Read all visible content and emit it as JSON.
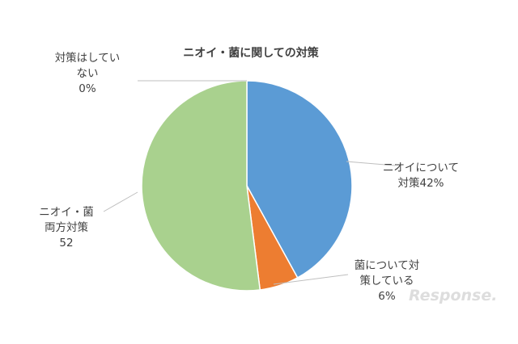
{
  "chart_data": {
    "type": "pie",
    "title": "ニオイ・菌に関しての対策",
    "start_angle_deg": 0,
    "direction": "clockwise",
    "slices": [
      {
        "label_lines": [
          "ニオイについて",
          "対策42%"
        ],
        "value": 42,
        "color": "#5b9bd5"
      },
      {
        "label_lines": [
          "菌について対",
          "策している",
          "6%"
        ],
        "value": 6,
        "color": "#ed7d31"
      },
      {
        "label_lines": [
          "ニオイ・菌",
          "",
          "両方対策",
          "52"
        ],
        "value": 52,
        "color": "#a9d18e"
      },
      {
        "label_lines": [
          "対策はしてい",
          "ない",
          "0%"
        ],
        "value": 0,
        "color": "#ffc000"
      }
    ]
  },
  "watermark": "Response."
}
